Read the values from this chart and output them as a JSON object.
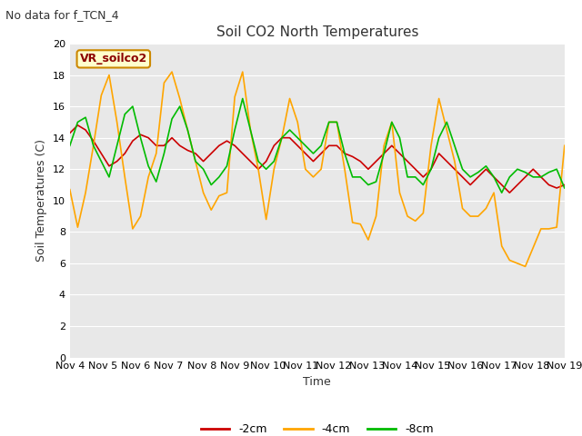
{
  "title": "Soil CO2 North Temperatures",
  "subtitle": "No data for f_TCN_4",
  "ylabel": "Soil Temperatures (C)",
  "xlabel": "Time",
  "legend_label": "VR_soilco2",
  "ylim": [
    0,
    20
  ],
  "plot_bg_color": "#e8e8e8",
  "fig_bg_color": "#ffffff",
  "grid_color": "#ffffff",
  "line_2cm_color": "#cc0000",
  "line_4cm_color": "#ffa500",
  "line_8cm_color": "#00bb00",
  "xtick_labels": [
    "Nov 4",
    "Nov 5",
    "Nov 6",
    "Nov 7",
    "Nov 8",
    "Nov 9",
    "Nov 10",
    "Nov 11",
    "Nov 12",
    "Nov 13",
    "Nov 14",
    "Nov 15",
    "Nov 16",
    "Nov 17",
    "Nov 18",
    "Nov 19"
  ],
  "t_2cm": [
    14.3,
    14.8,
    14.5,
    13.8,
    13.0,
    12.2,
    12.5,
    13.0,
    13.8,
    14.2,
    14.0,
    13.5,
    13.5,
    14.0,
    13.5,
    13.2,
    13.0,
    12.5,
    13.0,
    13.5,
    13.8,
    13.5,
    13.0,
    12.5,
    12.0,
    12.5,
    13.5,
    14.0,
    14.0,
    13.5,
    13.0,
    12.5,
    13.0,
    13.5,
    13.5,
    13.0,
    12.8,
    12.5,
    12.0,
    12.5,
    13.0,
    13.5,
    13.0,
    12.5,
    12.0,
    11.5,
    12.0,
    13.0,
    12.5,
    12.0,
    11.5,
    11.0,
    11.5,
    12.0,
    11.5,
    11.0,
    10.5,
    11.0,
    11.5,
    12.0,
    11.5,
    11.0,
    10.8,
    11.0
  ],
  "t_4cm": [
    10.7,
    8.3,
    10.5,
    13.5,
    16.7,
    18.0,
    15.0,
    11.5,
    8.2,
    9.0,
    11.5,
    13.0,
    17.5,
    18.2,
    16.5,
    14.5,
    12.5,
    10.5,
    9.4,
    10.3,
    10.5,
    16.6,
    18.2,
    14.5,
    12.0,
    8.8,
    12.0,
    14.0,
    16.5,
    15.0,
    12.0,
    11.5,
    12.0,
    15.0,
    15.0,
    12.0,
    8.6,
    8.5,
    7.5,
    9.0,
    13.5,
    15.0,
    10.5,
    9.0,
    8.7,
    9.2,
    13.5,
    16.5,
    14.5,
    12.5,
    9.5,
    9.0,
    9.0,
    9.5,
    10.5,
    7.1,
    6.2,
    6.0,
    5.8,
    7.0,
    8.2,
    8.2,
    8.3,
    13.5
  ],
  "t_8cm": [
    13.5,
    15.0,
    15.3,
    13.5,
    12.5,
    11.5,
    13.5,
    15.5,
    16.0,
    14.0,
    12.2,
    11.2,
    13.0,
    15.2,
    16.0,
    14.5,
    12.5,
    12.0,
    11.0,
    11.5,
    12.2,
    14.5,
    16.5,
    14.5,
    12.5,
    12.0,
    12.5,
    14.0,
    14.5,
    14.0,
    13.5,
    13.0,
    13.5,
    15.0,
    15.0,
    13.0,
    11.5,
    11.5,
    11.0,
    11.2,
    13.0,
    15.0,
    14.0,
    11.5,
    11.5,
    11.0,
    12.0,
    14.0,
    15.0,
    13.5,
    12.0,
    11.5,
    11.8,
    12.2,
    11.5,
    10.5,
    11.5,
    12.0,
    11.8,
    11.5,
    11.5,
    11.8,
    12.0,
    10.8
  ],
  "title_fontsize": 11,
  "subtitle_fontsize": 9,
  "axis_label_fontsize": 9,
  "tick_fontsize": 8,
  "legend_fontsize": 9
}
